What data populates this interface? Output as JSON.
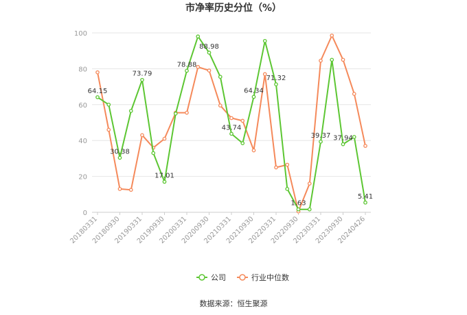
{
  "chart_data": {
    "type": "line",
    "title": "市净率历史分位（%）",
    "xlabel": "",
    "ylabel": "",
    "ylim": [
      0,
      100
    ],
    "yticks": [
      0,
      20,
      40,
      60,
      80,
      100
    ],
    "x": [
      "20180331",
      "20180630",
      "20180930",
      "20181231",
      "20190331",
      "20190630",
      "20190930",
      "20191231",
      "20200331",
      "20200630",
      "20200930",
      "20201231",
      "20210331",
      "20210630",
      "20210930",
      "20211231",
      "20220331",
      "20220630",
      "20220930",
      "20221231",
      "20230331",
      "20230630",
      "20230930",
      "20231231",
      "20240426"
    ],
    "xtick_labels": [
      "20180331",
      "20180930",
      "20190331",
      "20190930",
      "20200331",
      "20200930",
      "20210331",
      "20210930",
      "20220331",
      "20220930",
      "20230331",
      "20230930",
      "20240426"
    ],
    "series": [
      {
        "name": "公司",
        "color": "#5cc632",
        "values": [
          64.15,
          60.0,
          30.38,
          56.5,
          73.79,
          33.0,
          17.01,
          55.0,
          78.88,
          98.0,
          88.98,
          75.5,
          43.74,
          38.5,
          64.34,
          95.5,
          71.32,
          13.0,
          1.63,
          1.63,
          39.37,
          85.0,
          37.94,
          42.0,
          5.41
        ]
      },
      {
        "name": "行业中位数",
        "color": "#f5895a",
        "values": [
          78.0,
          46.0,
          13.0,
          12.5,
          43.0,
          36.0,
          41.0,
          55.5,
          55.5,
          81.0,
          79.0,
          59.5,
          52.5,
          51.0,
          34.5,
          77.0,
          25.0,
          26.5,
          0.5,
          16.0,
          84.5,
          98.5,
          85.0,
          66.0,
          37.0
        ]
      }
    ],
    "data_labels": [
      {
        "series": 0,
        "index": 0,
        "text": "64.15"
      },
      {
        "series": 0,
        "index": 2,
        "text": "30.38"
      },
      {
        "series": 0,
        "index": 4,
        "text": "73.79"
      },
      {
        "series": 0,
        "index": 6,
        "text": "17.01"
      },
      {
        "series": 0,
        "index": 8,
        "text": "78.88"
      },
      {
        "series": 0,
        "index": 10,
        "text": "88.98"
      },
      {
        "series": 0,
        "index": 12,
        "text": "43.74"
      },
      {
        "series": 0,
        "index": 14,
        "text": "64.34"
      },
      {
        "series": 0,
        "index": 16,
        "text": "71.32"
      },
      {
        "series": 0,
        "index": 18,
        "text": "1.63"
      },
      {
        "series": 0,
        "index": 20,
        "text": "39.37"
      },
      {
        "series": 0,
        "index": 22,
        "text": "37.94"
      },
      {
        "series": 0,
        "index": 24,
        "text": "5.41"
      }
    ],
    "legend_position": "bottom-center",
    "grid": true
  },
  "source_text": "数据来源：恒生聚源"
}
